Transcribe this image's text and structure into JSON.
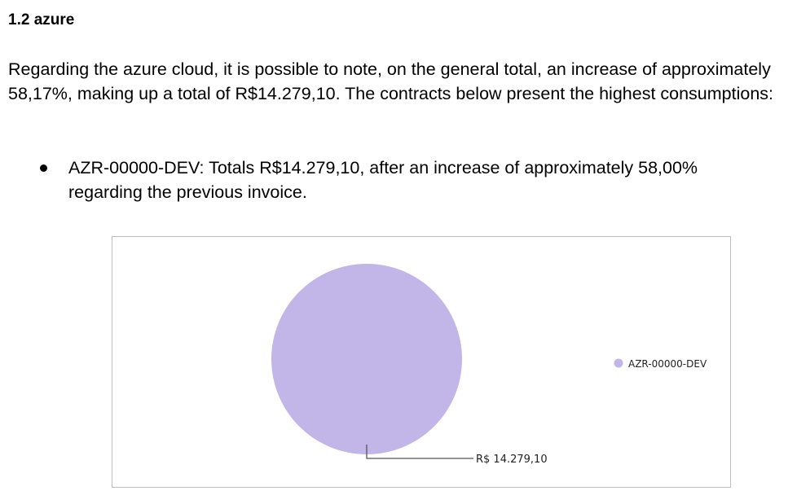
{
  "section": {
    "heading": "1.2 azure",
    "paragraph": "Regarding the azure cloud, it is possible to note, on the general total, an increase of approximately 58,17%, making up a total of R$14.279,10. The contracts below present the highest consumptions:",
    "bullets": [
      {
        "text": "AZR-00000-DEV: Totals R$14.279,10, after an increase of approximately 58,00% regarding the previous invoice."
      }
    ]
  },
  "chart_data": {
    "type": "pie",
    "slices": [
      {
        "label": "AZR-00000-DEV",
        "value": 14279.1,
        "value_label": "R$ 14.279,10",
        "color": "#c2b5e8"
      }
    ],
    "legend": {
      "position": "right",
      "entries": [
        "AZR-00000-DEV"
      ]
    }
  }
}
